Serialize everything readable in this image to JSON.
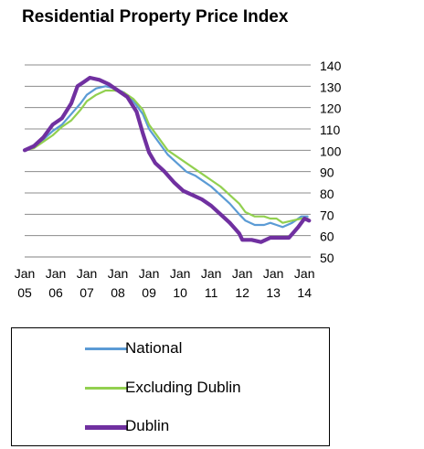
{
  "chart_data": {
    "type": "line",
    "title": "Residential Property Price Index",
    "xlabel": "",
    "ylabel": "",
    "xlim": [
      2005.0,
      2014.2
    ],
    "ylim": [
      50,
      140
    ],
    "y_ticks": [
      50,
      60,
      70,
      80,
      90,
      100,
      110,
      120,
      130,
      140
    ],
    "y_axis_side": "right",
    "x_ticks": [
      {
        "month": "Jan",
        "year": "05",
        "x": 2005.0
      },
      {
        "month": "Jan",
        "year": "06",
        "x": 2006.0
      },
      {
        "month": "Jan",
        "year": "07",
        "x": 2007.0
      },
      {
        "month": "Jan",
        "year": "08",
        "x": 2008.0
      },
      {
        "month": "Jan",
        "year": "09",
        "x": 2009.0
      },
      {
        "month": "Jan",
        "year": "10",
        "x": 2010.0
      },
      {
        "month": "Jan",
        "year": "11",
        "x": 2011.0
      },
      {
        "month": "Jan",
        "year": "12",
        "x": 2012.0
      },
      {
        "month": "Jan",
        "year": "13",
        "x": 2013.0
      },
      {
        "month": "Jan",
        "year": "14",
        "x": 2014.0
      }
    ],
    "grid": "horizontal",
    "legend_position": "bottom",
    "series": [
      {
        "name": "National",
        "color": "#5b9bd5",
        "points": [
          [
            2005.0,
            100
          ],
          [
            2005.3,
            102
          ],
          [
            2005.6,
            105
          ],
          [
            2005.9,
            109
          ],
          [
            2006.2,
            112
          ],
          [
            2006.5,
            117
          ],
          [
            2006.8,
            122
          ],
          [
            2007.0,
            126
          ],
          [
            2007.3,
            129
          ],
          [
            2007.6,
            130
          ],
          [
            2007.9,
            129
          ],
          [
            2008.2,
            127
          ],
          [
            2008.5,
            123
          ],
          [
            2008.8,
            117
          ],
          [
            2009.0,
            110
          ],
          [
            2009.3,
            104
          ],
          [
            2009.6,
            98
          ],
          [
            2009.9,
            94
          ],
          [
            2010.2,
            90
          ],
          [
            2010.5,
            88
          ],
          [
            2010.8,
            85
          ],
          [
            2011.0,
            83
          ],
          [
            2011.3,
            79
          ],
          [
            2011.6,
            75
          ],
          [
            2011.9,
            70
          ],
          [
            2012.1,
            67
          ],
          [
            2012.4,
            65
          ],
          [
            2012.7,
            65
          ],
          [
            2012.9,
            66
          ],
          [
            2013.1,
            65
          ],
          [
            2013.3,
            64
          ],
          [
            2013.6,
            66
          ],
          [
            2013.9,
            69
          ],
          [
            2014.1,
            69
          ]
        ]
      },
      {
        "name": "Excluding Dublin",
        "color": "#92d050",
        "points": [
          [
            2005.0,
            100
          ],
          [
            2005.3,
            101
          ],
          [
            2005.6,
            104
          ],
          [
            2005.9,
            107
          ],
          [
            2006.2,
            111
          ],
          [
            2006.5,
            114
          ],
          [
            2006.8,
            119
          ],
          [
            2007.0,
            123
          ],
          [
            2007.3,
            126
          ],
          [
            2007.6,
            128
          ],
          [
            2007.9,
            128
          ],
          [
            2008.2,
            127
          ],
          [
            2008.5,
            124
          ],
          [
            2008.8,
            119
          ],
          [
            2009.0,
            112
          ],
          [
            2009.3,
            106
          ],
          [
            2009.6,
            100
          ],
          [
            2009.9,
            97
          ],
          [
            2010.2,
            94
          ],
          [
            2010.5,
            91
          ],
          [
            2010.8,
            88
          ],
          [
            2011.0,
            86
          ],
          [
            2011.3,
            83
          ],
          [
            2011.6,
            79
          ],
          [
            2011.9,
            75
          ],
          [
            2012.1,
            71
          ],
          [
            2012.4,
            69
          ],
          [
            2012.7,
            69
          ],
          [
            2012.9,
            68
          ],
          [
            2013.1,
            68
          ],
          [
            2013.3,
            66
          ],
          [
            2013.6,
            67
          ],
          [
            2013.9,
            68
          ],
          [
            2014.1,
            68
          ]
        ]
      },
      {
        "name": "Dublin",
        "color": "#7030a0",
        "points": [
          [
            2005.0,
            100
          ],
          [
            2005.3,
            102
          ],
          [
            2005.6,
            106
          ],
          [
            2005.9,
            112
          ],
          [
            2006.2,
            115
          ],
          [
            2006.5,
            122
          ],
          [
            2006.7,
            130
          ],
          [
            2006.9,
            132
          ],
          [
            2007.1,
            134
          ],
          [
            2007.4,
            133
          ],
          [
            2007.7,
            131
          ],
          [
            2008.0,
            128
          ],
          [
            2008.3,
            125
          ],
          [
            2008.6,
            118
          ],
          [
            2008.8,
            108
          ],
          [
            2009.0,
            99
          ],
          [
            2009.2,
            94
          ],
          [
            2009.5,
            90
          ],
          [
            2009.8,
            85
          ],
          [
            2010.1,
            81
          ],
          [
            2010.4,
            79
          ],
          [
            2010.7,
            77
          ],
          [
            2011.0,
            74
          ],
          [
            2011.3,
            70
          ],
          [
            2011.6,
            66
          ],
          [
            2011.9,
            61
          ],
          [
            2012.0,
            58
          ],
          [
            2012.3,
            58
          ],
          [
            2012.6,
            57
          ],
          [
            2012.9,
            59
          ],
          [
            2013.2,
            59
          ],
          [
            2013.5,
            59
          ],
          [
            2013.8,
            64
          ],
          [
            2014.0,
            68
          ],
          [
            2014.15,
            67
          ]
        ]
      }
    ]
  }
}
